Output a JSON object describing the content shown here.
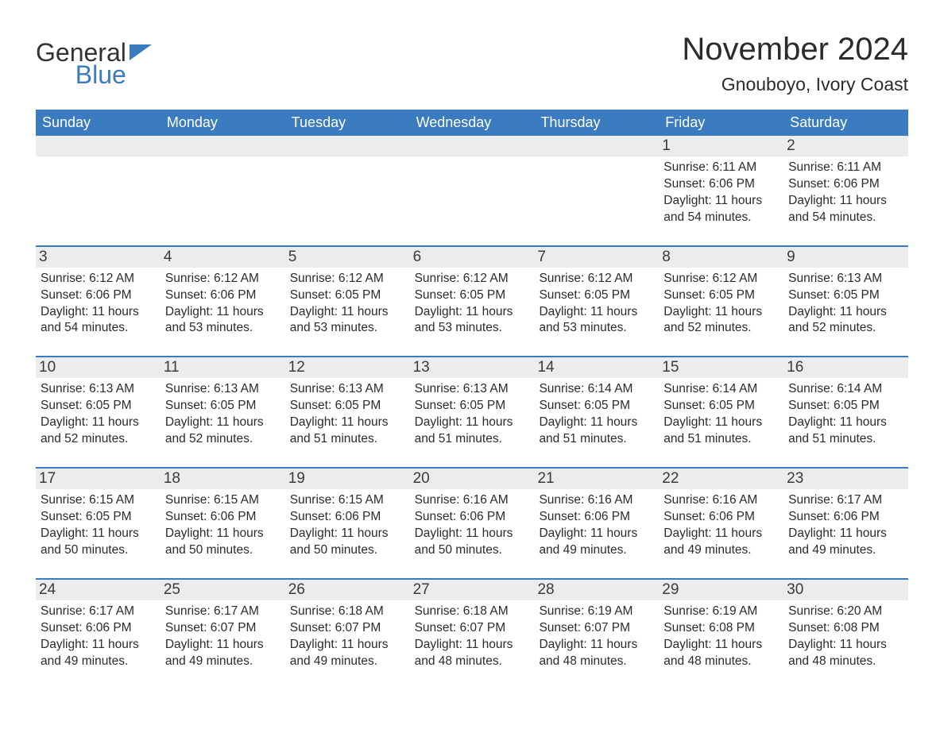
{
  "logo": {
    "text1": "General",
    "text2": "Blue"
  },
  "title": "November 2024",
  "location": "Gnouboyo, Ivory Coast",
  "colors": {
    "header_bg": "#3b7bbf",
    "header_text": "#ffffff",
    "daynum_bg": "#ececec",
    "text": "#2b2b2b",
    "rule": "#3b7bbf"
  },
  "weekdays": [
    "Sunday",
    "Monday",
    "Tuesday",
    "Wednesday",
    "Thursday",
    "Friday",
    "Saturday"
  ],
  "weeks": [
    [
      {
        "empty": true
      },
      {
        "empty": true
      },
      {
        "empty": true
      },
      {
        "empty": true
      },
      {
        "empty": true
      },
      {
        "day": "1",
        "sunrise": "6:11 AM",
        "sunset": "6:06 PM",
        "daylight": "11 hours and 54 minutes."
      },
      {
        "day": "2",
        "sunrise": "6:11 AM",
        "sunset": "6:06 PM",
        "daylight": "11 hours and 54 minutes."
      }
    ],
    [
      {
        "day": "3",
        "sunrise": "6:12 AM",
        "sunset": "6:06 PM",
        "daylight": "11 hours and 54 minutes."
      },
      {
        "day": "4",
        "sunrise": "6:12 AM",
        "sunset": "6:06 PM",
        "daylight": "11 hours and 53 minutes."
      },
      {
        "day": "5",
        "sunrise": "6:12 AM",
        "sunset": "6:05 PM",
        "daylight": "11 hours and 53 minutes."
      },
      {
        "day": "6",
        "sunrise": "6:12 AM",
        "sunset": "6:05 PM",
        "daylight": "11 hours and 53 minutes."
      },
      {
        "day": "7",
        "sunrise": "6:12 AM",
        "sunset": "6:05 PM",
        "daylight": "11 hours and 53 minutes."
      },
      {
        "day": "8",
        "sunrise": "6:12 AM",
        "sunset": "6:05 PM",
        "daylight": "11 hours and 52 minutes."
      },
      {
        "day": "9",
        "sunrise": "6:13 AM",
        "sunset": "6:05 PM",
        "daylight": "11 hours and 52 minutes."
      }
    ],
    [
      {
        "day": "10",
        "sunrise": "6:13 AM",
        "sunset": "6:05 PM",
        "daylight": "11 hours and 52 minutes."
      },
      {
        "day": "11",
        "sunrise": "6:13 AM",
        "sunset": "6:05 PM",
        "daylight": "11 hours and 52 minutes."
      },
      {
        "day": "12",
        "sunrise": "6:13 AM",
        "sunset": "6:05 PM",
        "daylight": "11 hours and 51 minutes."
      },
      {
        "day": "13",
        "sunrise": "6:13 AM",
        "sunset": "6:05 PM",
        "daylight": "11 hours and 51 minutes."
      },
      {
        "day": "14",
        "sunrise": "6:14 AM",
        "sunset": "6:05 PM",
        "daylight": "11 hours and 51 minutes."
      },
      {
        "day": "15",
        "sunrise": "6:14 AM",
        "sunset": "6:05 PM",
        "daylight": "11 hours and 51 minutes."
      },
      {
        "day": "16",
        "sunrise": "6:14 AM",
        "sunset": "6:05 PM",
        "daylight": "11 hours and 51 minutes."
      }
    ],
    [
      {
        "day": "17",
        "sunrise": "6:15 AM",
        "sunset": "6:05 PM",
        "daylight": "11 hours and 50 minutes."
      },
      {
        "day": "18",
        "sunrise": "6:15 AM",
        "sunset": "6:06 PM",
        "daylight": "11 hours and 50 minutes."
      },
      {
        "day": "19",
        "sunrise": "6:15 AM",
        "sunset": "6:06 PM",
        "daylight": "11 hours and 50 minutes."
      },
      {
        "day": "20",
        "sunrise": "6:16 AM",
        "sunset": "6:06 PM",
        "daylight": "11 hours and 50 minutes."
      },
      {
        "day": "21",
        "sunrise": "6:16 AM",
        "sunset": "6:06 PM",
        "daylight": "11 hours and 49 minutes."
      },
      {
        "day": "22",
        "sunrise": "6:16 AM",
        "sunset": "6:06 PM",
        "daylight": "11 hours and 49 minutes."
      },
      {
        "day": "23",
        "sunrise": "6:17 AM",
        "sunset": "6:06 PM",
        "daylight": "11 hours and 49 minutes."
      }
    ],
    [
      {
        "day": "24",
        "sunrise": "6:17 AM",
        "sunset": "6:06 PM",
        "daylight": "11 hours and 49 minutes."
      },
      {
        "day": "25",
        "sunrise": "6:17 AM",
        "sunset": "6:07 PM",
        "daylight": "11 hours and 49 minutes."
      },
      {
        "day": "26",
        "sunrise": "6:18 AM",
        "sunset": "6:07 PM",
        "daylight": "11 hours and 49 minutes."
      },
      {
        "day": "27",
        "sunrise": "6:18 AM",
        "sunset": "6:07 PM",
        "daylight": "11 hours and 48 minutes."
      },
      {
        "day": "28",
        "sunrise": "6:19 AM",
        "sunset": "6:07 PM",
        "daylight": "11 hours and 48 minutes."
      },
      {
        "day": "29",
        "sunrise": "6:19 AM",
        "sunset": "6:08 PM",
        "daylight": "11 hours and 48 minutes."
      },
      {
        "day": "30",
        "sunrise": "6:20 AM",
        "sunset": "6:08 PM",
        "daylight": "11 hours and 48 minutes."
      }
    ]
  ],
  "labels": {
    "sunrise": "Sunrise:",
    "sunset": "Sunset:",
    "daylight": "Daylight:"
  }
}
